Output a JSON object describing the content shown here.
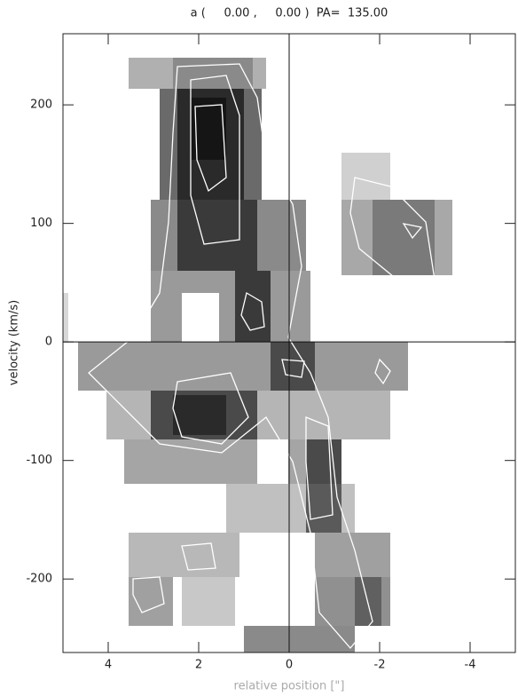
{
  "chart_data": {
    "type": "heatmap",
    "title": "a (     0.00 ,     0.00 )  PA=  135.00",
    "xlabel": "relative position [\"]",
    "ylabel": "velocity (km/s)",
    "xlim": [
      5.0,
      -5.0
    ],
    "ylim": [
      -262,
      260
    ],
    "xticks": [
      4,
      2,
      0,
      -2,
      -4
    ],
    "yticks": [
      -200,
      -100,
      0,
      100,
      200
    ],
    "zero_lines": true
  }
}
